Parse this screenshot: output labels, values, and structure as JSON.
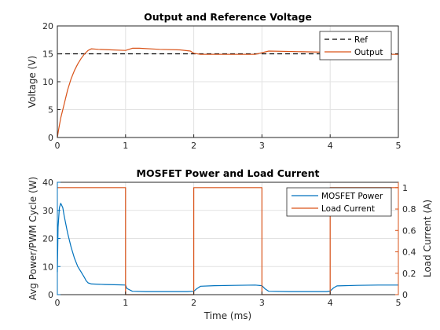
{
  "chart_data": [
    {
      "type": "line",
      "title": "Output and Reference Voltage",
      "xlabel": "",
      "ylabel": "Voltage (V)",
      "xlim": [
        0,
        5
      ],
      "ylim": [
        0,
        20
      ],
      "xticks": [
        0,
        1,
        2,
        3,
        4,
        5
      ],
      "yticks": [
        0,
        5,
        10,
        15,
        20
      ],
      "grid": true,
      "legend": "top-right",
      "series": [
        {
          "name": "Ref",
          "color": "#000000",
          "style": "dashed",
          "x": [
            0,
            5
          ],
          "y": [
            15,
            15
          ]
        },
        {
          "name": "Output",
          "color": "#d95319",
          "style": "solid",
          "x": [
            0,
            0.02,
            0.05,
            0.1,
            0.15,
            0.2,
            0.25,
            0.3,
            0.35,
            0.4,
            0.45,
            0.5,
            0.6,
            0.8,
            1.0,
            1.05,
            1.1,
            1.2,
            1.5,
            1.8,
            1.95,
            2.0,
            2.1,
            2.5,
            2.9,
            3.0,
            3.1,
            3.5,
            3.9,
            4.0,
            4.1,
            4.5,
            5.0
          ],
          "y": [
            0,
            1.5,
            3.5,
            6.0,
            8.5,
            10.5,
            12.0,
            13.2,
            14.2,
            15.0,
            15.6,
            15.9,
            15.8,
            15.7,
            15.6,
            15.8,
            16.0,
            16.0,
            15.8,
            15.7,
            15.5,
            15.1,
            14.9,
            14.9,
            14.9,
            15.2,
            15.5,
            15.4,
            15.3,
            15.1,
            14.9,
            14.9,
            14.9
          ]
        }
      ]
    },
    {
      "type": "line",
      "title": "MOSFET Power and Load Current",
      "xlabel": "Time (ms)",
      "ylabel": "Avg Power/PWM Cycle (W)",
      "y2label": "Load Current (A)",
      "xlim": [
        0,
        5
      ],
      "ylim": [
        0,
        40
      ],
      "y2lim": [
        0,
        1.05
      ],
      "xticks": [
        0,
        1,
        2,
        3,
        4,
        5
      ],
      "yticks": [
        0,
        10,
        20,
        30,
        40
      ],
      "y2ticks": [
        0,
        0.2,
        0.4,
        0.6,
        0.8,
        1
      ],
      "y2ticklabels": [
        "0",
        "0.2",
        "0.4",
        "0.6",
        "0.8",
        "1"
      ],
      "grid": true,
      "legend": "top-right",
      "left_color": "#0072bd",
      "right_color": "#d95319",
      "series": [
        {
          "name": "MOSFET Power",
          "axis": "left",
          "color": "#0072bd",
          "x": [
            0,
            0.01,
            0.03,
            0.05,
            0.08,
            0.1,
            0.15,
            0.2,
            0.25,
            0.3,
            0.35,
            0.4,
            0.42,
            0.45,
            0.5,
            0.7,
            0.9,
            1.0,
            1.02,
            1.1,
            1.3,
            1.6,
            1.9,
            2.0,
            2.05,
            2.1,
            2.3,
            2.6,
            2.9,
            3.0,
            3.05,
            3.1,
            3.4,
            3.7,
            3.95,
            4.0,
            4.05,
            4.1,
            4.4,
            4.7,
            5.0
          ],
          "y": [
            8,
            24,
            31,
            32.5,
            31,
            28,
            22,
            17,
            13,
            10,
            8,
            6,
            5,
            4.2,
            3.8,
            3.6,
            3.5,
            3.4,
            2.2,
            1.2,
            1.1,
            1.1,
            1.1,
            1.2,
            2.2,
            3.0,
            3.2,
            3.3,
            3.4,
            3.2,
            2.0,
            1.2,
            1.1,
            1.1,
            1.1,
            1.3,
            2.4,
            3.1,
            3.3,
            3.4,
            3.4
          ]
        },
        {
          "name": "Load Current",
          "axis": "right",
          "color": "#d95319",
          "x": [
            0,
            1,
            1,
            2,
            2,
            3,
            3,
            4,
            4,
            5
          ],
          "y": [
            1,
            1,
            0,
            0,
            1,
            1,
            0,
            0,
            1,
            1
          ]
        }
      ]
    }
  ]
}
